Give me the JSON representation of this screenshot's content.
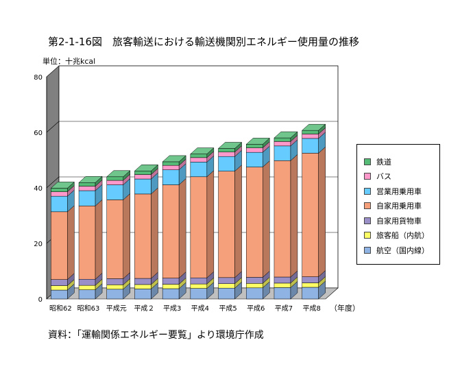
{
  "title": "第2-1-16図　旅客輸送における輸送機関別エネルギー使用量の推移",
  "unit_label": "単位：十兆kcal",
  "source_note": "資料：「運輸関係エネルギー要覧」より環境庁作成",
  "x_unit_label": "（年度）",
  "chart_data": {
    "type": "bar",
    "stacked": true,
    "three_d": true,
    "title": "第2-1-16図　旅客輸送における輸送機関別エネルギー使用量の推移",
    "ylabel": "単位：十兆kcal",
    "xlabel": "（年度）",
    "ylim": [
      0,
      80
    ],
    "yticks": [
      0,
      20,
      40,
      60,
      80
    ],
    "grid": true,
    "legend_position": "right",
    "categories": [
      "昭和62",
      "昭和63",
      "平成元",
      "平成２",
      "平成3",
      "平成4",
      "平成5",
      "平成6",
      "平成7",
      "平成8"
    ],
    "series": [
      {
        "name": "航空（国内線）",
        "color": "#8fb4e3",
        "values": [
          3.2,
          3.3,
          3.5,
          3.6,
          3.7,
          3.8,
          3.9,
          4.0,
          4.1,
          4.2
        ]
      },
      {
        "name": "旅客船（内航）",
        "color": "#ffff66",
        "values": [
          1.6,
          1.6,
          1.6,
          1.6,
          1.6,
          1.6,
          1.6,
          1.6,
          1.6,
          1.6
        ]
      },
      {
        "name": "自家用貨物車",
        "color": "#9b8fc8",
        "values": [
          2.2,
          2.2,
          2.2,
          2.2,
          2.2,
          2.2,
          2.2,
          2.2,
          2.2,
          2.2
        ]
      },
      {
        "name": "自家用乗用車",
        "color": "#f6a07b",
        "values": [
          24.4,
          26.4,
          28.4,
          30.4,
          33.6,
          36.4,
          38.3,
          39.7,
          41.9,
          44.5
        ]
      },
      {
        "name": "営業用乗用車",
        "color": "#66ccff",
        "values": [
          5.6,
          5.5,
          5.4,
          5.4,
          5.4,
          5.3,
          5.3,
          5.3,
          5.3,
          5.3
        ]
      },
      {
        "name": "バス",
        "color": "#ff99cc",
        "values": [
          1.6,
          1.6,
          1.6,
          1.6,
          1.6,
          1.6,
          1.6,
          1.6,
          1.6,
          1.6
        ]
      },
      {
        "name": "鉄道",
        "color": "#55bb77",
        "values": [
          1.3,
          1.3,
          1.3,
          1.3,
          1.3,
          1.3,
          1.3,
          1.3,
          1.3,
          1.3
        ]
      }
    ]
  }
}
